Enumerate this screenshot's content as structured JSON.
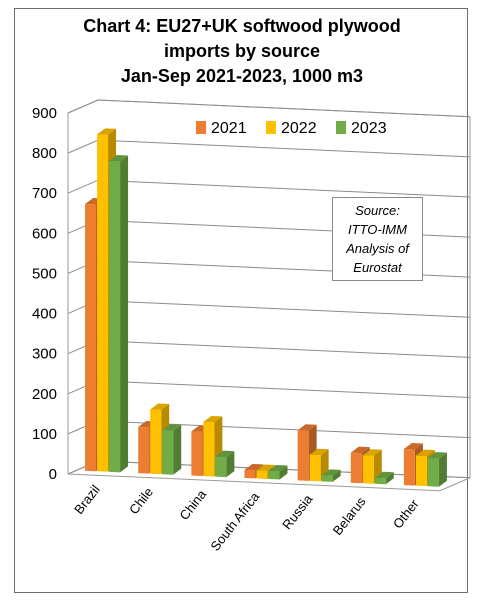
{
  "chart_data": {
    "type": "bar",
    "title_lines": [
      "Chart 4: EU27+UK softwood plywood",
      "imports by source",
      "Jan-Sep 2021-2023, 1000 m3"
    ],
    "categories": [
      "Brazil",
      "Chile",
      "China",
      "South Africa",
      "Russia",
      "Belarus",
      "Other"
    ],
    "series": [
      {
        "name": "2021",
        "color": "#ED7D31",
        "values": [
          665,
          115,
          110,
          20,
          125,
          75,
          90
        ]
      },
      {
        "name": "2022",
        "color": "#FFC000",
        "values": [
          840,
          160,
          135,
          20,
          65,
          70,
          75
        ]
      },
      {
        "name": "2023",
        "color": "#70AD47",
        "values": [
          775,
          110,
          50,
          20,
          15,
          15,
          70
        ]
      }
    ],
    "ylim": [
      0,
      900
    ],
    "yticks": [
      0,
      100,
      200,
      300,
      400,
      500,
      600,
      700,
      800,
      900
    ],
    "ytick_labels": [
      "0",
      "100",
      "200",
      "300",
      "400",
      "500",
      "600",
      "700",
      "800",
      "900"
    ],
    "grid": true,
    "legend_position": "top-right",
    "annotation_lines": [
      "Source:",
      "ITTO-IMM",
      "Analysis of",
      "Eurostat"
    ]
  }
}
